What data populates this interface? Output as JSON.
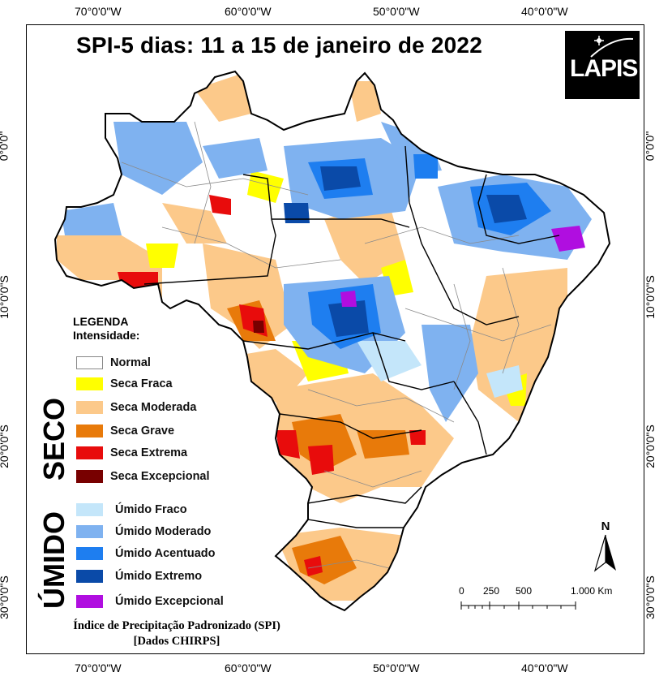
{
  "map": {
    "title": "SPI-5 dias: 11 a 15 de janeiro de 2022",
    "logo_text": "LAPIS",
    "top_lon_labels": [
      "70°0'0\"W",
      "60°0'0\"W",
      "50°0'0\"W",
      "40°0'0\"W"
    ],
    "bottom_lon_labels": [
      "70°0'0\"W",
      "60°0'0\"W",
      "50°0'0\"W",
      "40°0'0\"W"
    ],
    "left_lat_labels": [
      "0°0'0\"",
      "10°0'0\"S",
      "20°0'0\"S",
      "30°0'0\"S"
    ],
    "right_lat_labels": [
      "0°0'0\"",
      "10°0'0\"S",
      "20°0'0\"S",
      "30°0'0\"S"
    ]
  },
  "legend": {
    "title_line1": "LEGENDA",
    "title_line2": "Intensidade:",
    "dry_group_label": "SECO",
    "wet_group_label": "ÚMIDO",
    "items": [
      {
        "label": "Normal",
        "color": "#ffffff"
      },
      {
        "label": "Seca Fraca",
        "color": "#ffff00"
      },
      {
        "label": "Seca Moderada",
        "color": "#fcc98a"
      },
      {
        "label": "Seca Grave",
        "color": "#e87a0a"
      },
      {
        "label": "Seca Extrema",
        "color": "#e80c0c"
      },
      {
        "label": "Seca Excepcional",
        "color": "#780000"
      },
      {
        "label": "Úmido Fraco",
        "color": "#c4e6fa"
      },
      {
        "label": "Úmido Moderado",
        "color": "#7fb2f0"
      },
      {
        "label": "Úmido Acentuado",
        "color": "#1e7ef0"
      },
      {
        "label": "Úmido Extremo",
        "color": "#0a4aa8"
      },
      {
        "label": "Úmido Excepcional",
        "color": "#b00ee0"
      }
    ]
  },
  "footer": {
    "line1": "Índice de Precipitação Padronizado (SPI)",
    "line2": "[Dados CHIRPS]"
  },
  "scale_bar": {
    "labels": [
      "0",
      "250",
      "500",
      "1.000 Km"
    ]
  },
  "north_arrow": {
    "label": "N"
  }
}
